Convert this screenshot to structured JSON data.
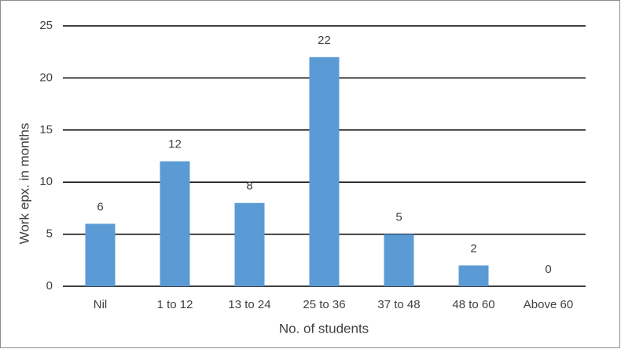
{
  "chart_data": {
    "type": "bar",
    "x_label": "No. of students",
    "y_label": "Work epx. in months",
    "categories": [
      "Nil",
      "1 to 12",
      "13 to 24",
      "25 to 36",
      "37 to 48",
      "48 to 60",
      "Above 60"
    ],
    "values": [
      6,
      12,
      8,
      22,
      5,
      2,
      0
    ],
    "color": "#5b9bd5",
    "ylim": [
      0,
      25
    ],
    "yticks": [
      0,
      5,
      10,
      15,
      20,
      25
    ],
    "grid": true
  }
}
